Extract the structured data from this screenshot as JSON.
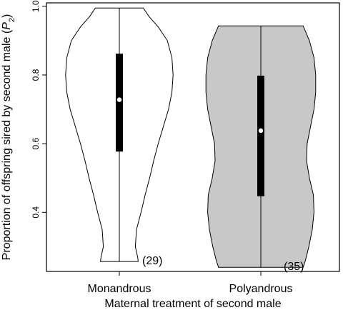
{
  "chart_data": {
    "type": "violin",
    "xlabel": "Maternal treatment of second male",
    "ylabel": {
      "prefix": "Proportion of offspring sired by second male (",
      "symbol": "P",
      "subscript": "2",
      "suffix": ")"
    },
    "ylim": [
      0.228,
      1.01
    ],
    "yticks": [
      0.4,
      0.6,
      0.8,
      1.0
    ],
    "ytick_labels": [
      "0.4",
      "0.6",
      "0.8",
      "1.0"
    ],
    "grid": false,
    "legend": "none",
    "groups": [
      {
        "category": "Monandrous",
        "n_label": "(29)",
        "fill": "#ffffff",
        "min": 0.257,
        "max": 0.995,
        "q1": 0.577,
        "q3": 0.862,
        "median": 0.728,
        "density_profile": [
          [
            0.257,
            0.33
          ],
          [
            0.27,
            0.32
          ],
          [
            0.3,
            0.28
          ],
          [
            0.35,
            0.3
          ],
          [
            0.4,
            0.38
          ],
          [
            0.45,
            0.45
          ],
          [
            0.5,
            0.53
          ],
          [
            0.55,
            0.6
          ],
          [
            0.6,
            0.68
          ],
          [
            0.65,
            0.77
          ],
          [
            0.7,
            0.86
          ],
          [
            0.75,
            0.92
          ],
          [
            0.8,
            0.94
          ],
          [
            0.85,
            0.92
          ],
          [
            0.9,
            0.84
          ],
          [
            0.94,
            0.68
          ],
          [
            0.97,
            0.52
          ],
          [
            0.995,
            0.42
          ]
        ]
      },
      {
        "category": "Polyandrous",
        "n_label": "(35)",
        "fill": "#c8c8c8",
        "min": 0.24,
        "max": 0.943,
        "q1": 0.447,
        "q3": 0.798,
        "median": 0.638,
        "density_profile": [
          [
            0.24,
            0.74
          ],
          [
            0.26,
            0.78
          ],
          [
            0.3,
            0.84
          ],
          [
            0.35,
            0.9
          ],
          [
            0.4,
            0.93
          ],
          [
            0.45,
            0.92
          ],
          [
            0.5,
            0.85
          ],
          [
            0.55,
            0.8
          ],
          [
            0.6,
            0.81
          ],
          [
            0.65,
            0.87
          ],
          [
            0.7,
            0.93
          ],
          [
            0.75,
            0.96
          ],
          [
            0.8,
            0.96
          ],
          [
            0.85,
            0.93
          ],
          [
            0.9,
            0.85
          ],
          [
            0.943,
            0.74
          ]
        ]
      }
    ]
  }
}
